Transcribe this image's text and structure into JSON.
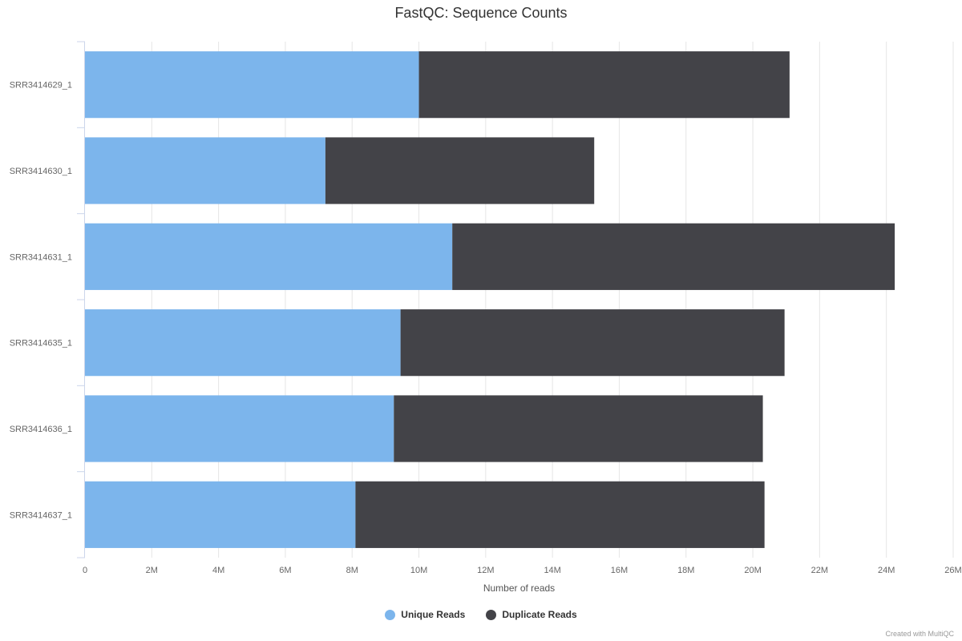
{
  "chart_data": {
    "type": "bar",
    "orientation": "horizontal",
    "stacked": true,
    "title": "FastQC: Sequence Counts",
    "xlabel": "Number of reads",
    "ylabel": "",
    "xlim": [
      0,
      26000000
    ],
    "x_ticks": [
      {
        "value": 0,
        "label": "0"
      },
      {
        "value": 2000000,
        "label": "2M"
      },
      {
        "value": 4000000,
        "label": "4M"
      },
      {
        "value": 6000000,
        "label": "6M"
      },
      {
        "value": 8000000,
        "label": "8M"
      },
      {
        "value": 10000000,
        "label": "10M"
      },
      {
        "value": 12000000,
        "label": "12M"
      },
      {
        "value": 14000000,
        "label": "14M"
      },
      {
        "value": 16000000,
        "label": "16M"
      },
      {
        "value": 18000000,
        "label": "18M"
      },
      {
        "value": 20000000,
        "label": "20M"
      },
      {
        "value": 22000000,
        "label": "22M"
      },
      {
        "value": 24000000,
        "label": "24M"
      },
      {
        "value": 26000000,
        "label": "26M"
      }
    ],
    "categories": [
      "SRR3414629_1",
      "SRR3414630_1",
      "SRR3414631_1",
      "SRR3414635_1",
      "SRR3414636_1",
      "SRR3414637_1"
    ],
    "series": [
      {
        "name": "Unique Reads",
        "color": "#7cb5ec",
        "values": [
          10000000,
          7200000,
          11000000,
          9450000,
          9250000,
          8100000
        ]
      },
      {
        "name": "Duplicate Reads",
        "color": "#434348",
        "values": [
          11100000,
          8050000,
          13250000,
          11500000,
          11050000,
          12250000
        ]
      }
    ],
    "grid": "vertical",
    "legend": "bottom-center"
  },
  "credit": "Created with MultiQC"
}
